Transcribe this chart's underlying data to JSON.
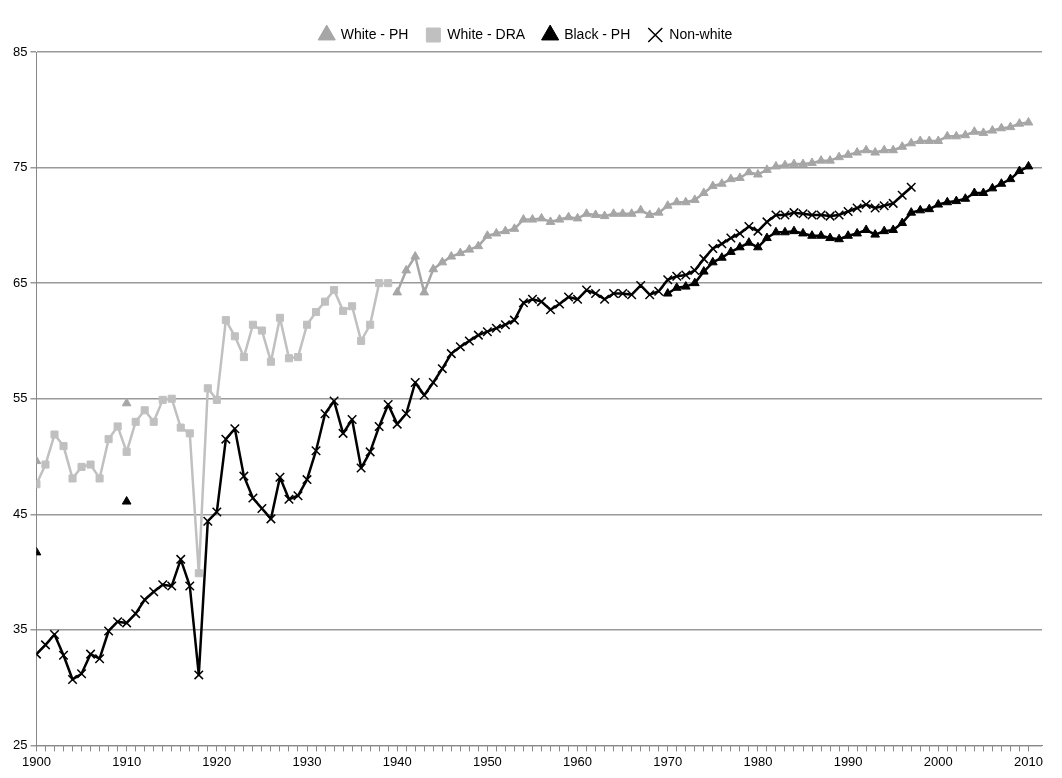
{
  "chart_data": {
    "type": "line",
    "legend": "top",
    "grid": "y",
    "line_style": "solid",
    "x": [
      1900,
      1901,
      1902,
      1903,
      1904,
      1905,
      1906,
      1907,
      1908,
      1909,
      1910,
      1911,
      1912,
      1913,
      1914,
      1915,
      1916,
      1917,
      1918,
      1919,
      1920,
      1921,
      1922,
      1923,
      1924,
      1925,
      1926,
      1927,
      1928,
      1929,
      1930,
      1931,
      1932,
      1933,
      1934,
      1935,
      1936,
      1937,
      1938,
      1939,
      1940,
      1941,
      1942,
      1943,
      1944,
      1945,
      1946,
      1947,
      1948,
      1949,
      1950,
      1951,
      1952,
      1953,
      1954,
      1955,
      1956,
      1957,
      1958,
      1959,
      1960,
      1961,
      1962,
      1963,
      1964,
      1965,
      1966,
      1967,
      1968,
      1969,
      1970,
      1971,
      1972,
      1973,
      1974,
      1975,
      1976,
      1977,
      1978,
      1979,
      1980,
      1981,
      1982,
      1983,
      1984,
      1985,
      1986,
      1987,
      1988,
      1989,
      1990,
      1991,
      1992,
      1993,
      1994,
      1995,
      1996,
      1997,
      1998,
      1999,
      2000,
      2001,
      2002,
      2003,
      2004,
      2005,
      2006,
      2007,
      2008,
      2009,
      2010
    ],
    "xlim": [
      1900,
      2011.5
    ],
    "xticks": [
      1900,
      {
        "value": 1901,
        "label": null
      },
      {
        "value": 1902,
        "label": null
      },
      {
        "value": 1903,
        "label": null
      },
      {
        "value": 1904,
        "label": null
      },
      {
        "value": 1905,
        "label": null
      },
      {
        "value": 1906,
        "label": null
      },
      {
        "value": 1907,
        "label": null
      },
      {
        "value": 1908,
        "label": null
      },
      {
        "value": 1909,
        "label": null
      },
      1910,
      {
        "value": 1911,
        "label": null
      },
      {
        "value": 1912,
        "label": null
      },
      {
        "value": 1913,
        "label": null
      },
      {
        "value": 1914,
        "label": null
      },
      {
        "value": 1915,
        "label": null
      },
      {
        "value": 1916,
        "label": null
      },
      {
        "value": 1917,
        "label": null
      },
      {
        "value": 1918,
        "label": null
      },
      {
        "value": 1919,
        "label": null
      },
      1920,
      {
        "value": 1921,
        "label": null
      },
      {
        "value": 1922,
        "label": null
      },
      {
        "value": 1923,
        "label": null
      },
      {
        "value": 1924,
        "label": null
      },
      {
        "value": 1925,
        "label": null
      },
      {
        "value": 1926,
        "label": null
      },
      {
        "value": 1927,
        "label": null
      },
      {
        "value": 1928,
        "label": null
      },
      {
        "value": 1929,
        "label": null
      },
      1930,
      {
        "value": 1931,
        "label": null
      },
      {
        "value": 1932,
        "label": null
      },
      {
        "value": 1933,
        "label": null
      },
      {
        "value": 1934,
        "label": null
      },
      {
        "value": 1935,
        "label": null
      },
      {
        "value": 1936,
        "label": null
      },
      {
        "value": 1937,
        "label": null
      },
      {
        "value": 1938,
        "label": null
      },
      {
        "value": 1939,
        "label": null
      },
      1940,
      {
        "value": 1941,
        "label": null
      },
      {
        "value": 1942,
        "label": null
      },
      {
        "value": 1943,
        "label": null
      },
      {
        "value": 1944,
        "label": null
      },
      {
        "value": 1945,
        "label": null
      },
      {
        "value": 1946,
        "label": null
      },
      {
        "value": 1947,
        "label": null
      },
      {
        "value": 1948,
        "label": null
      },
      {
        "value": 1949,
        "label": null
      },
      1950,
      {
        "value": 1951,
        "label": null
      },
      {
        "value": 1952,
        "label": null
      },
      {
        "value": 1953,
        "label": null
      },
      {
        "value": 1954,
        "label": null
      },
      {
        "value": 1955,
        "label": null
      },
      {
        "value": 1956,
        "label": null
      },
      {
        "value": 1957,
        "label": null
      },
      {
        "value": 1958,
        "label": null
      },
      {
        "value": 1959,
        "label": null
      },
      1960,
      {
        "value": 1961,
        "label": null
      },
      {
        "value": 1962,
        "label": null
      },
      {
        "value": 1963,
        "label": null
      },
      {
        "value": 1964,
        "label": null
      },
      {
        "value": 1965,
        "label": null
      },
      {
        "value": 1966,
        "label": null
      },
      {
        "value": 1967,
        "label": null
      },
      {
        "value": 1968,
        "label": null
      },
      {
        "value": 1969,
        "label": null
      },
      1970,
      {
        "value": 1971,
        "label": null
      },
      {
        "value": 1972,
        "label": null
      },
      {
        "value": 1973,
        "label": null
      },
      {
        "value": 1974,
        "label": null
      },
      {
        "value": 1975,
        "label": null
      },
      {
        "value": 1976,
        "label": null
      },
      {
        "value": 1977,
        "label": null
      },
      {
        "value": 1978,
        "label": null
      },
      {
        "value": 1979,
        "label": null
      },
      1980,
      {
        "value": 1981,
        "label": null
      },
      {
        "value": 1982,
        "label": null
      },
      {
        "value": 1983,
        "label": null
      },
      {
        "value": 1984,
        "label": null
      },
      {
        "value": 1985,
        "label": null
      },
      {
        "value": 1986,
        "label": null
      },
      {
        "value": 1987,
        "label": null
      },
      {
        "value": 1988,
        "label": null
      },
      {
        "value": 1989,
        "label": null
      },
      1990,
      {
        "value": 1991,
        "label": null
      },
      {
        "value": 1992,
        "label": null
      },
      {
        "value": 1993,
        "label": null
      },
      {
        "value": 1994,
        "label": null
      },
      {
        "value": 1995,
        "label": null
      },
      {
        "value": 1996,
        "label": null
      },
      {
        "value": 1997,
        "label": null
      },
      {
        "value": 1998,
        "label": null
      },
      {
        "value": 1999,
        "label": null
      },
      2000,
      {
        "value": 2001,
        "label": null
      },
      {
        "value": 2002,
        "label": null
      },
      {
        "value": 2003,
        "label": null
      },
      {
        "value": 2004,
        "label": null
      },
      {
        "value": 2005,
        "label": null
      },
      {
        "value": 2006,
        "label": null
      },
      {
        "value": 2007,
        "label": null
      },
      {
        "value": 2008,
        "label": null
      },
      {
        "value": 2009,
        "label": null
      },
      2010
    ],
    "ylim": [
      25,
      85
    ],
    "yticks": [
      25,
      35,
      45,
      55,
      65,
      75,
      85
    ],
    "series": [
      {
        "name": "White - PH",
        "color": "#a6a6a6",
        "marker": "triangle",
        "values": [
          49.6,
          null,
          null,
          null,
          null,
          null,
          null,
          null,
          null,
          null,
          54.6,
          null,
          null,
          null,
          null,
          null,
          null,
          null,
          null,
          null,
          null,
          null,
          null,
          null,
          null,
          null,
          null,
          null,
          null,
          null,
          null,
          null,
          null,
          null,
          null,
          null,
          null,
          null,
          null,
          null,
          64.2,
          66.1,
          67.3,
          64.2,
          66.2,
          66.8,
          67.3,
          67.6,
          67.9,
          68.2,
          69.1,
          69.3,
          69.5,
          69.7,
          70.5,
          70.5,
          70.6,
          70.3,
          70.5,
          70.7,
          70.6,
          71.0,
          70.9,
          70.8,
          71.0,
          71.0,
          71.0,
          71.3,
          70.9,
          71.1,
          71.7,
          72.0,
          72.0,
          72.2,
          72.8,
          73.4,
          73.6,
          74.0,
          74.1,
          74.6,
          74.4,
          74.8,
          75.1,
          75.2,
          75.3,
          75.3,
          75.4,
          75.6,
          75.6,
          75.9,
          76.1,
          76.3,
          76.5,
          76.3,
          76.5,
          76.5,
          76.8,
          77.1,
          77.3,
          77.3,
          77.3,
          77.7,
          77.7,
          77.8,
          78.1,
          78.0,
          78.2,
          78.4,
          78.5,
          78.8,
          78.9
        ]
      },
      {
        "name": "White - DRA",
        "color": "#c0c0c0",
        "marker": "square",
        "values": [
          47.6,
          49.3,
          51.9,
          50.9,
          48.1,
          49.1,
          49.3,
          48.1,
          51.5,
          52.6,
          50.4,
          53.0,
          54.0,
          53.0,
          54.9,
          55.0,
          52.5,
          52.0,
          39.9,
          55.9,
          54.9,
          61.8,
          60.4,
          58.6,
          61.4,
          60.9,
          58.2,
          62.0,
          58.5,
          58.6,
          61.4,
          62.5,
          63.4,
          64.4,
          62.6,
          63.0,
          60.0,
          61.4,
          65.0,
          65.0,
          null,
          null,
          null,
          null,
          null,
          null,
          null,
          null,
          null,
          null,
          null,
          null,
          null,
          null,
          null,
          null,
          null,
          null,
          null,
          null,
          null,
          null,
          null,
          null,
          null,
          null,
          null,
          null,
          null,
          null,
          null,
          null,
          null,
          null,
          null,
          null,
          null,
          null,
          null,
          null,
          null,
          null,
          null,
          null,
          null,
          null,
          null,
          null,
          null,
          null,
          null,
          null,
          null,
          null,
          null,
          null,
          null,
          null,
          null,
          null,
          null,
          null,
          null,
          null,
          null,
          null,
          null,
          null,
          null,
          null,
          null
        ]
      },
      {
        "name": "Black - PH",
        "color": "#000000",
        "marker": "triangle",
        "values": [
          41.7,
          null,
          null,
          null,
          null,
          null,
          null,
          null,
          null,
          null,
          46.1,
          null,
          null,
          null,
          null,
          null,
          null,
          null,
          null,
          null,
          null,
          null,
          null,
          null,
          null,
          null,
          null,
          null,
          null,
          null,
          null,
          null,
          null,
          null,
          null,
          null,
          null,
          null,
          null,
          null,
          null,
          null,
          null,
          null,
          null,
          null,
          null,
          null,
          null,
          null,
          null,
          null,
          null,
          null,
          null,
          null,
          null,
          null,
          null,
          null,
          null,
          null,
          null,
          null,
          null,
          null,
          null,
          null,
          null,
          null,
          64.1,
          64.6,
          64.7,
          65.0,
          66.0,
          66.8,
          67.2,
          67.7,
          68.1,
          68.5,
          68.1,
          68.9,
          69.4,
          69.4,
          69.5,
          69.3,
          69.1,
          69.1,
          68.9,
          68.8,
          69.1,
          69.3,
          69.6,
          69.2,
          69.5,
          69.6,
          70.2,
          71.1,
          71.3,
          71.4,
          71.8,
          72.0,
          72.1,
          72.3,
          72.8,
          72.8,
          73.2,
          73.6,
          74.0,
          74.7,
          75.1
        ]
      },
      {
        "name": "Non-white",
        "color": "#000000",
        "marker": "cross",
        "values": [
          32.9,
          33.7,
          34.6,
          32.8,
          30.7,
          31.2,
          32.9,
          32.5,
          34.9,
          35.7,
          35.6,
          36.4,
          37.6,
          38.3,
          38.9,
          38.8,
          41.1,
          38.8,
          31.1,
          44.4,
          45.2,
          51.5,
          52.4,
          48.3,
          46.4,
          45.5,
          44.6,
          48.2,
          46.3,
          46.6,
          48.0,
          50.5,
          53.7,
          54.8,
          52.0,
          53.2,
          49.0,
          50.4,
          52.6,
          54.5,
          52.8,
          53.7,
          56.4,
          55.3,
          56.4,
          57.6,
          58.9,
          59.5,
          60.0,
          60.5,
          60.8,
          61.1,
          61.4,
          61.8,
          63.3,
          63.6,
          63.4,
          62.7,
          63.2,
          63.8,
          63.6,
          64.4,
          64.1,
          63.6,
          64.1,
          64.1,
          64.0,
          64.8,
          64.0,
          64.3,
          65.3,
          65.6,
          65.7,
          66.1,
          67.1,
          68.0,
          68.4,
          68.9,
          69.3,
          69.9,
          69.5,
          70.3,
          70.9,
          70.9,
          71.1,
          71.0,
          70.9,
          70.9,
          70.8,
          70.9,
          71.2,
          71.5,
          71.8,
          71.5,
          71.7,
          71.9,
          72.6,
          73.3,
          null,
          null,
          null,
          null,
          null,
          null,
          null,
          null,
          null,
          null,
          null,
          null,
          null
        ]
      }
    ]
  }
}
